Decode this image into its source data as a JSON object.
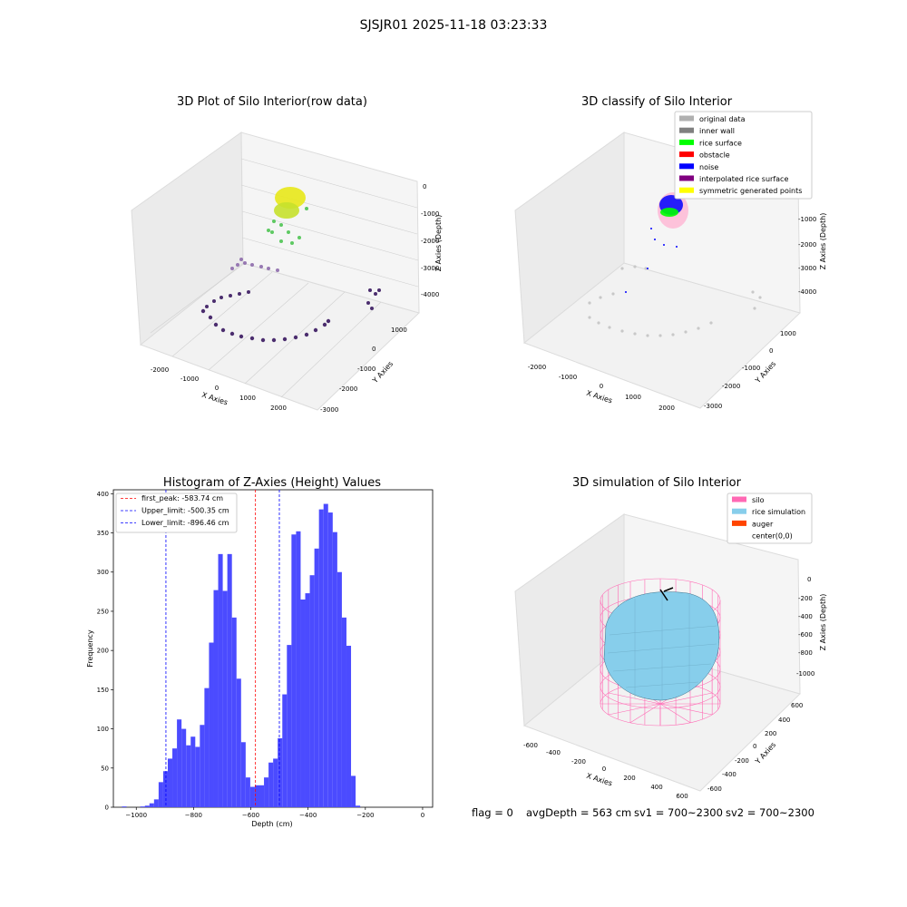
{
  "suptitle": "SJSJR01 2025-11-18 03:23:33",
  "colors": {
    "hist_bar": "#4b4bff",
    "peak_line": "#ff0000",
    "limit_line": "#0000ff",
    "silo": "#ff69b4",
    "rice_sim": "#87ceeb",
    "auger": "#ff4500",
    "rice_surface": "#00ff00",
    "noise": "#0000ff",
    "original": "#b0b0b0"
  },
  "panels": {
    "raw": {
      "title": "3D Plot of Silo Interior(row data)",
      "xlabel": "X Axies",
      "ylabel": "Y Axies",
      "zlabel": "Z Axies (Depth)",
      "xticks": [
        "-2000",
        "-1000",
        "0",
        "1000",
        "2000"
      ],
      "yticks": [
        "1000",
        "0",
        "-1000",
        "-2000",
        "-3000"
      ],
      "zticks": [
        "0",
        "-1000",
        "-2000",
        "-3000",
        "-4000"
      ]
    },
    "classify": {
      "title": "3D classify of Silo Interior",
      "xlabel": "X Axies",
      "ylabel": "Y Axies",
      "zlabel": "Z Axies (Depth)",
      "xticks": [
        "-2000",
        "-1000",
        "0",
        "1000",
        "2000"
      ],
      "yticks": [
        "1000",
        "0",
        "-1000",
        "-2000",
        "-3000"
      ],
      "zticks": [
        "-1000",
        "-2000",
        "-3000",
        "-4000"
      ],
      "legend": [
        {
          "label": "original data",
          "color": "#b0b0b0"
        },
        {
          "label": "inner wall",
          "color": "#808080"
        },
        {
          "label": "rice surface",
          "color": "#00ff00"
        },
        {
          "label": "obstacle",
          "color": "#ff0000"
        },
        {
          "label": "noise",
          "color": "#0000ff"
        },
        {
          "label": "interpolated rice surface",
          "color": "#800080"
        },
        {
          "label": "symmetric generated points",
          "color": "#ffff00"
        }
      ]
    },
    "simulation": {
      "title": "3D simulation of Silo Interior",
      "xlabel": "X Axies",
      "ylabel": "Y Axies",
      "zlabel": "Z Axies (Depth)",
      "xticks": [
        "-600",
        "-400",
        "-200",
        "0",
        "200",
        "400",
        "600"
      ],
      "yticks": [
        "600",
        "400",
        "200",
        "0",
        "-200",
        "-400",
        "-600"
      ],
      "zticks": [
        "0",
        "-200",
        "-400",
        "-600",
        "-800",
        "-1000"
      ],
      "legend": [
        {
          "label": "silo",
          "color": "#ff69b4"
        },
        {
          "label": "rice simulation",
          "color": "#87ceeb"
        },
        {
          "label": "auger",
          "color": "#ff4500"
        },
        {
          "label": "center(0,0)",
          "color": "#ffffff"
        }
      ]
    }
  },
  "chart_data": {
    "type": "bar",
    "title": "Histogram of Z-Axies (Height) Values",
    "xlabel": "Depth (cm)",
    "ylabel": "Frequency",
    "xlim": [
      -1080,
      35
    ],
    "ylim": [
      0,
      405
    ],
    "xticks": [
      -1000,
      -800,
      -600,
      -400,
      -200,
      0
    ],
    "yticks": [
      0,
      50,
      100,
      150,
      200,
      250,
      300,
      350,
      400
    ],
    "bin_start": -1050,
    "bin_width": 16,
    "values": [
      1,
      0,
      0,
      0,
      1,
      2,
      5,
      10,
      32,
      46,
      62,
      75,
      112,
      100,
      79,
      90,
      77,
      105,
      152,
      210,
      277,
      323,
      276,
      323,
      242,
      164,
      83,
      38,
      26,
      28,
      28,
      38,
      57,
      62,
      88,
      144,
      207,
      348,
      352,
      265,
      273,
      296,
      330,
      380,
      387,
      376,
      351,
      300,
      242,
      206,
      40,
      2
    ],
    "lines": [
      {
        "label": "first_peak: -583.74 cm",
        "x": -583.74,
        "color": "#ff0000"
      },
      {
        "label": "Upper_limit: -500.35 cm",
        "x": -500.35,
        "color": "#0000ff"
      },
      {
        "label": "Lower_limit: -896.46 cm",
        "x": -896.46,
        "color": "#0000ff"
      }
    ]
  },
  "footer": {
    "flag": "flag = 0",
    "avg": "avgDepth = 563 cm",
    "sv1": "sv1 = 700~2300",
    "sv2": "sv2 = 700~2300"
  }
}
